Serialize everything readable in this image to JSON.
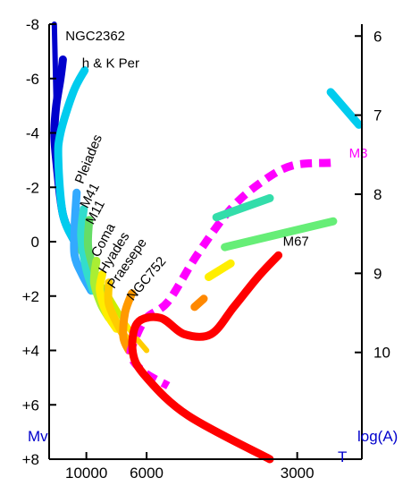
{
  "chart_data": {
    "type": "line",
    "title": "",
    "xlabel": "T",
    "ylabel": "Mv",
    "y2label": "log(A)",
    "x_scale": "reciprocal",
    "xlim": [
      17000,
      2470
    ],
    "ylim": [
      8,
      -8
    ],
    "y2lim": [
      11.35,
      5.85
    ],
    "x_ticks": [
      10000,
      6000,
      3000
    ],
    "x_tick_labels": [
      "10000",
      "6000",
      "3000"
    ],
    "y_ticks": [
      -8,
      -6,
      -4,
      -2,
      0,
      2,
      4,
      6,
      8
    ],
    "y_tick_labels": [
      "-8",
      "-6",
      "-4",
      "-2",
      "0",
      "+2",
      "+4",
      "+6",
      "+8"
    ],
    "y2_ticks": [
      6,
      7,
      8,
      9,
      10
    ],
    "y2_tick_labels": [
      "6",
      "7",
      "8",
      "9",
      "10"
    ],
    "grid": false,
    "legend": "none",
    "zams": {
      "points": [
        [
          15500,
          -8
        ],
        [
          15000,
          -5
        ],
        [
          15500,
          -4
        ],
        [
          15000,
          -3
        ],
        [
          13500,
          -1
        ],
        [
          11500,
          0
        ],
        [
          9500,
          1
        ],
        [
          8000,
          2
        ],
        [
          7000,
          3
        ],
        [
          6500,
          3.5
        ],
        [
          6000,
          4
        ]
      ],
      "colors": [
        "#0000cc",
        "#0066ff",
        "#00ccff",
        "#00ccff",
        "#33ddcc",
        "#66dd66",
        "#99dd33",
        "#ccee00",
        "#ffee00",
        "#ffcc00",
        "#ff9900",
        "#ff3300"
      ]
    },
    "series": [
      {
        "name": "NGC2362",
        "color": "#0000cc",
        "dash": false,
        "points": [
          [
            13500,
            -6.7
          ],
          [
            14000,
            -6
          ],
          [
            15000,
            -5
          ],
          [
            15500,
            -4
          ],
          [
            15000,
            -3
          ],
          [
            13500,
            -1
          ],
          [
            11500,
            0
          ]
        ]
      },
      {
        "name": "h & K Per",
        "color": "#00ccee",
        "dash": false,
        "points": [
          [
            10200,
            -6.3
          ],
          [
            11700,
            -5.5
          ],
          [
            14000,
            -4
          ],
          [
            14500,
            -3
          ],
          [
            13500,
            -1
          ],
          [
            11500,
            0
          ]
        ]
      },
      {
        "name": "Pleiades",
        "color": "#33aaff",
        "dash": false,
        "points": [
          [
            11200,
            -1.8
          ],
          [
            11500,
            -0.5
          ],
          [
            11500,
            0.5
          ],
          [
            10500,
            1.2
          ],
          [
            9500,
            1.8
          ]
        ]
      },
      {
        "name": "M41",
        "color": "#33ddcc",
        "dash": false,
        "points": [
          [
            10300,
            -1.2
          ],
          [
            10600,
            -0.2
          ],
          [
            10000,
            1
          ],
          [
            9300,
            1.8
          ]
        ]
      },
      {
        "name": "M11",
        "color": "#66dd66",
        "dash": false,
        "points": [
          [
            9700,
            -0.8
          ],
          [
            9800,
            0.2
          ],
          [
            9100,
            1.2
          ],
          [
            8500,
            2
          ]
        ]
      },
      {
        "name": "Coma",
        "color": "#aaee33",
        "dash": false,
        "points": [
          [
            9000,
            0.7
          ],
          [
            9200,
            1.5
          ],
          [
            8600,
            2.3
          ],
          [
            8000,
            2.8
          ]
        ]
      },
      {
        "name": "Hyades",
        "color": "#ffee00",
        "dash": false,
        "points": [
          [
            8500,
            1.2
          ],
          [
            8700,
            1.8
          ],
          [
            8200,
            2.6
          ],
          [
            7500,
            3.2
          ]
        ]
      },
      {
        "name": "Praesepe",
        "color": "#ffcc00",
        "dash": false,
        "points": [
          [
            8000,
            1.5
          ],
          [
            8000,
            2.3
          ],
          [
            7300,
            3.2
          ],
          [
            6800,
            3.7
          ]
        ]
      },
      {
        "name": "NGC752",
        "color": "#ff9900",
        "dash": false,
        "points": [
          [
            6650,
            1.9
          ],
          [
            7000,
            2.6
          ],
          [
            7100,
            3.5
          ],
          [
            6800,
            4
          ]
        ]
      },
      {
        "name": "M3",
        "color": "#ff00ff",
        "dash": true,
        "points": [
          [
            2700,
            -2.9
          ],
          [
            3050,
            -2.8
          ],
          [
            3400,
            -2.2
          ],
          [
            3850,
            -1.2
          ],
          [
            4500,
            0.5
          ],
          [
            5250,
            2.2
          ],
          [
            6000,
            2.8
          ],
          [
            6500,
            3.6
          ],
          [
            6700,
            4.2
          ],
          [
            6100,
            4.8
          ],
          [
            5250,
            5.3
          ]
        ]
      },
      {
        "name": "M3",
        "color": "#33ddaa",
        "dash": false,
        "points": [
          [
            4100,
            -0.9
          ],
          [
            3300,
            -1.6
          ]
        ]
      },
      {
        "name": "M3",
        "color": "#66ee77",
        "dash": false,
        "points": [
          [
            3950,
            0.2
          ],
          [
            2680,
            -0.75
          ]
        ]
      },
      {
        "name": "M3",
        "color": "#ffee00",
        "dash": false,
        "points": [
          [
            4250,
            1.3
          ],
          [
            3850,
            0.8
          ]
        ]
      },
      {
        "name": "M3",
        "color": "#ff8800",
        "dash": false,
        "points": [
          [
            4550,
            2.4
          ],
          [
            4350,
            2.1
          ]
        ]
      },
      {
        "name": "M67",
        "color": "#ff0000",
        "dash": false,
        "points": [
          [
            3200,
            0.5
          ],
          [
            3450,
            1.3
          ],
          [
            3800,
            2.4
          ],
          [
            4200,
            3.4
          ],
          [
            4800,
            3.4
          ],
          [
            5500,
            2.8
          ],
          [
            6400,
            3
          ],
          [
            6600,
            4.1
          ],
          [
            6000,
            5
          ],
          [
            4700,
            6.4
          ],
          [
            3300,
            8
          ]
        ]
      },
      {
        "name": "",
        "color": "#00ccee",
        "dash": false,
        "points": [
          [
            2700,
            -5.5
          ],
          [
            2490,
            -4.3
          ]
        ]
      }
    ],
    "labels": [
      {
        "text": "NGC2362",
        "color": "#000000",
        "anchor": [
          13000,
          -7.4
        ],
        "rotate": 0
      },
      {
        "text": "h & K Per",
        "color": "#000000",
        "anchor": [
          10500,
          -6.4
        ],
        "rotate": 0
      },
      {
        "text": "Pleiades",
        "color": "#000000",
        "anchor": [
          10400,
          -2.1
        ],
        "rotate": -68
      },
      {
        "text": "M41",
        "color": "#000000",
        "anchor": [
          9900,
          -1.2
        ],
        "rotate": -62
      },
      {
        "text": "M11",
        "color": "#000000",
        "anchor": [
          9300,
          -0.6
        ],
        "rotate": -62
      },
      {
        "text": "Coma",
        "color": "#000000",
        "anchor": [
          8800,
          0.6
        ],
        "rotate": -62
      },
      {
        "text": "Hyades",
        "color": "#000000",
        "anchor": [
          8250,
          1.2
        ],
        "rotate": -58
      },
      {
        "text": "Praesepe",
        "color": "#000000",
        "anchor": [
          7650,
          1.75
        ],
        "rotate": -55
      },
      {
        "text": "NGC752",
        "color": "#000000",
        "anchor": [
          6600,
          2.2
        ],
        "rotate": -50
      },
      {
        "text": "M3",
        "color": "#ff00ff",
        "anchor": [
          2560,
          -3.1
        ],
        "rotate": 0
      },
      {
        "text": "M67",
        "color": "#000000",
        "anchor": [
          3150,
          0.15
        ],
        "rotate": 0
      }
    ],
    "colors": {
      "axis": "#000000",
      "axis_label": "#0000cc"
    }
  }
}
